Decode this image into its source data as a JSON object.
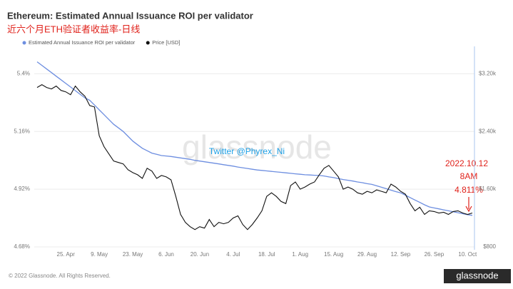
{
  "chart_data": {
    "type": "line",
    "title": "Ethereum: Estimated Annual Issuance ROI per validator",
    "subtitle": "近六个月ETH验证者收益率-日线",
    "watermark": "glassnode",
    "annotations": [
      "Twitter @Phyrex_Ni",
      "2022.10.12",
      "8AM",
      "4.811%"
    ],
    "footer": "© 2022 Glassnode. All Rights Reserved.",
    "logo": "glassnode",
    "categories": [
      null,
      null,
      null,
      null,
      null,
      null,
      "25. Apr",
      null,
      null,
      null,
      null,
      null,
      null,
      "9. May",
      null,
      null,
      null,
      null,
      null,
      null,
      "23. May",
      null,
      null,
      null,
      null,
      null,
      null,
      "6. Jun",
      null,
      null,
      null,
      null,
      null,
      null,
      "20. Jun",
      null,
      null,
      null,
      null,
      null,
      null,
      "4. Jul",
      null,
      null,
      null,
      null,
      null,
      null,
      "18. Jul",
      null,
      null,
      null,
      null,
      null,
      null,
      "1. Aug",
      null,
      null,
      null,
      null,
      null,
      null,
      "15. Aug",
      null,
      null,
      null,
      null,
      null,
      null,
      "29. Aug",
      null,
      null,
      null,
      null,
      null,
      null,
      "12. Sep",
      null,
      null,
      null,
      null,
      null,
      null,
      "26. Sep",
      null,
      null,
      null,
      null,
      null,
      null,
      "10. Oct",
      null
    ],
    "series": [
      {
        "name": "Estimated Annual Issuance ROI per validator",
        "color": "#6d8ee0",
        "values": [
          5.45,
          5.435,
          5.42,
          5.405,
          5.39,
          5.375,
          5.36,
          5.345,
          5.33,
          5.315,
          5.3,
          5.29,
          5.27,
          5.25,
          5.23,
          5.21,
          5.19,
          5.175,
          5.16,
          5.14,
          5.12,
          5.105,
          5.09,
          5.08,
          5.07,
          5.065,
          5.06,
          5.058,
          5.056,
          5.053,
          5.05,
          5.047,
          5.044,
          5.04,
          5.037,
          5.034,
          5.031,
          5.028,
          5.025,
          5.022,
          5.019,
          5.016,
          5.012,
          5.009,
          5.006,
          5.003,
          5.0,
          4.998,
          4.996,
          4.994,
          4.992,
          4.99,
          4.988,
          4.986,
          4.984,
          4.982,
          4.98,
          4.979,
          4.978,
          4.977,
          4.975,
          4.971,
          4.968,
          4.964,
          4.96,
          4.957,
          4.954,
          4.95,
          4.947,
          4.943,
          4.94,
          4.934,
          4.928,
          4.922,
          4.916,
          4.91,
          4.905,
          4.895,
          4.885,
          4.875,
          4.865,
          4.855,
          4.846,
          4.842,
          4.838,
          4.834,
          4.83,
          4.826,
          4.822,
          4.818,
          4.814,
          4.811
        ]
      },
      {
        "name": "Price [USD]",
        "color": "#111111",
        "axis": "y2",
        "values": [
          3010,
          3050,
          3010,
          2990,
          3030,
          2970,
          2950,
          2910,
          3030,
          2950,
          2890,
          2760,
          2740,
          2340,
          2190,
          2090,
          1990,
          1970,
          1950,
          1870,
          1830,
          1800,
          1750,
          1890,
          1850,
          1750,
          1790,
          1770,
          1730,
          1500,
          1250,
          1140,
          1080,
          1040,
          1080,
          1060,
          1180,
          1080,
          1140,
          1120,
          1140,
          1200,
          1230,
          1110,
          1040,
          1110,
          1200,
          1300,
          1500,
          1550,
          1500,
          1430,
          1400,
          1650,
          1700,
          1600,
          1630,
          1670,
          1700,
          1800,
          1890,
          1930,
          1850,
          1770,
          1600,
          1630,
          1600,
          1550,
          1530,
          1570,
          1550,
          1590,
          1570,
          1550,
          1670,
          1630,
          1570,
          1530,
          1400,
          1300,
          1350,
          1250,
          1300,
          1290,
          1270,
          1280,
          1250,
          1290,
          1300,
          1270,
          1250,
          1270
        ]
      }
    ],
    "ylim": [
      4.668,
      5.52
    ],
    "yticks": [
      {
        "value": 4.68,
        "label": "4.68%"
      },
      {
        "value": 4.92,
        "label": "4.92%"
      },
      {
        "value": 5.16,
        "label": "5.16%"
      },
      {
        "value": 5.4,
        "label": "5.4%"
      }
    ],
    "y2lim": [
      760,
      3600
    ],
    "y2ticks": [
      {
        "value": 800,
        "label": "$800"
      },
      {
        "value": 1600,
        "label": "$1.60k"
      },
      {
        "value": 2400,
        "label": "$2.40k"
      },
      {
        "value": 3200,
        "label": "$3.20k"
      }
    ],
    "grid": true
  }
}
